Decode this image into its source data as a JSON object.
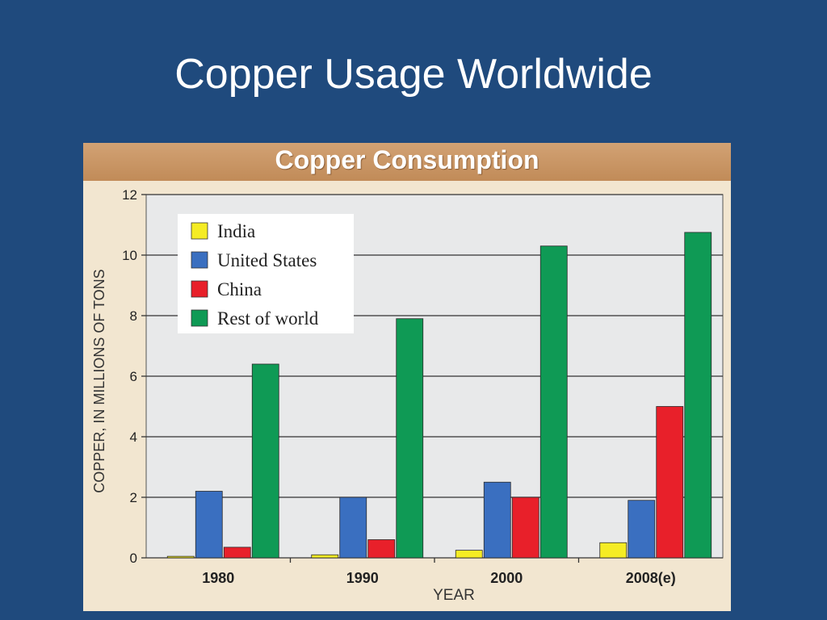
{
  "slide": {
    "title": "Copper Usage Worldwide",
    "background": "#1f4a7d"
  },
  "chart_data": {
    "type": "bar",
    "title": "Copper Consumption",
    "xlabel": "YEAR",
    "ylabel": "COPPER, IN MILLIONS OF TONS",
    "categories": [
      "1980",
      "1990",
      "2000",
      "2008(e)"
    ],
    "ylim": [
      0,
      12
    ],
    "yticks": [
      0,
      2,
      4,
      6,
      8,
      10,
      12
    ],
    "grid": true,
    "legend_position": "top-left",
    "series": [
      {
        "name": "India",
        "color": "#f5ec24",
        "values": [
          0.05,
          0.1,
          0.25,
          0.5
        ]
      },
      {
        "name": "United States",
        "color": "#3a6fc0",
        "values": [
          2.2,
          2.0,
          2.5,
          1.9
        ]
      },
      {
        "name": "China",
        "color": "#e8202a",
        "values": [
          0.35,
          0.6,
          2.0,
          5.0
        ]
      },
      {
        "name": "Rest of world",
        "color": "#0f9a55",
        "values": [
          6.4,
          7.9,
          10.3,
          10.75
        ]
      }
    ]
  }
}
